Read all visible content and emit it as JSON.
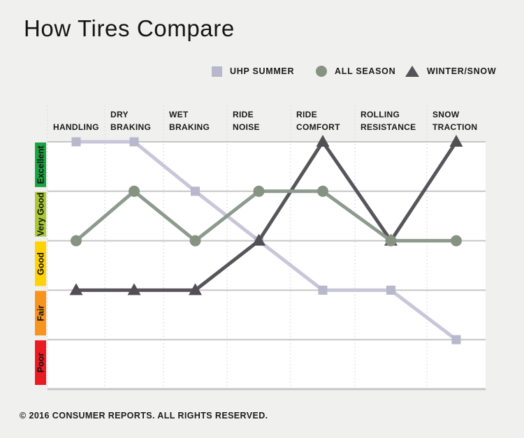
{
  "header": {
    "title": "How Tires Compare"
  },
  "legend": {
    "items": [
      {
        "label": "UHP SUMMER",
        "marker": "square",
        "color": "#b9b7cc"
      },
      {
        "label": "ALL SEASON",
        "marker": "circle",
        "color": "#879382"
      },
      {
        "label": "WINTER/SNOW",
        "marker": "triangle",
        "color": "#555358"
      }
    ]
  },
  "chart_data": {
    "type": "line",
    "title": "How Tires Compare",
    "categories": [
      "HANDLING",
      "DRY BRAKING",
      "WET BRAKING",
      "RIDE NOISE",
      "RIDE COMFORT",
      "ROLLING RESISTANCE",
      "SNOW TRACTION"
    ],
    "category_label_lines": [
      [
        "HANDLING"
      ],
      [
        "DRY",
        "BRAKING"
      ],
      [
        "WET",
        "BRAKING"
      ],
      [
        "RIDE",
        "NOISE"
      ],
      [
        "RIDE",
        "COMFORT"
      ],
      [
        "ROLLING",
        "RESISTANCE"
      ],
      [
        "SNOW",
        "TRACTION"
      ]
    ],
    "value_scale": {
      "bands_top_to_bottom": [
        {
          "label": "Excellent",
          "color": "#1ca343"
        },
        {
          "label": "Very Good",
          "color": "#a9c835"
        },
        {
          "label": "Good",
          "color": "#ffd303"
        },
        {
          "label": "Fair",
          "color": "#f6941d"
        },
        {
          "label": "Poor",
          "color": "#eb1b23"
        }
      ]
    },
    "ylim": [
      0,
      5
    ],
    "grid": {
      "horizontal": "solid",
      "vertical": "dashed"
    },
    "legend_position": "top",
    "series": [
      {
        "name": "UHP SUMMER",
        "marker": "square",
        "line_color": "#c8c6d8",
        "marker_color": "#b9b7cc",
        "values": [
          5,
          5,
          4,
          3,
          2,
          2,
          1
        ]
      },
      {
        "name": "ALL SEASON",
        "marker": "circle",
        "line_color": "#8d9a8e",
        "marker_color": "#879382",
        "values": [
          3,
          4,
          3,
          4,
          4,
          3,
          3
        ]
      },
      {
        "name": "WINTER/SNOW",
        "marker": "triangle",
        "line_color": "#57555a",
        "marker_color": "#514f54",
        "values": [
          2,
          2,
          2,
          3,
          5,
          3,
          5
        ]
      }
    ]
  },
  "footer": {
    "copyright": "© 2016 CONSUMER REPORTS. ALL RIGHTS RESERVED."
  }
}
